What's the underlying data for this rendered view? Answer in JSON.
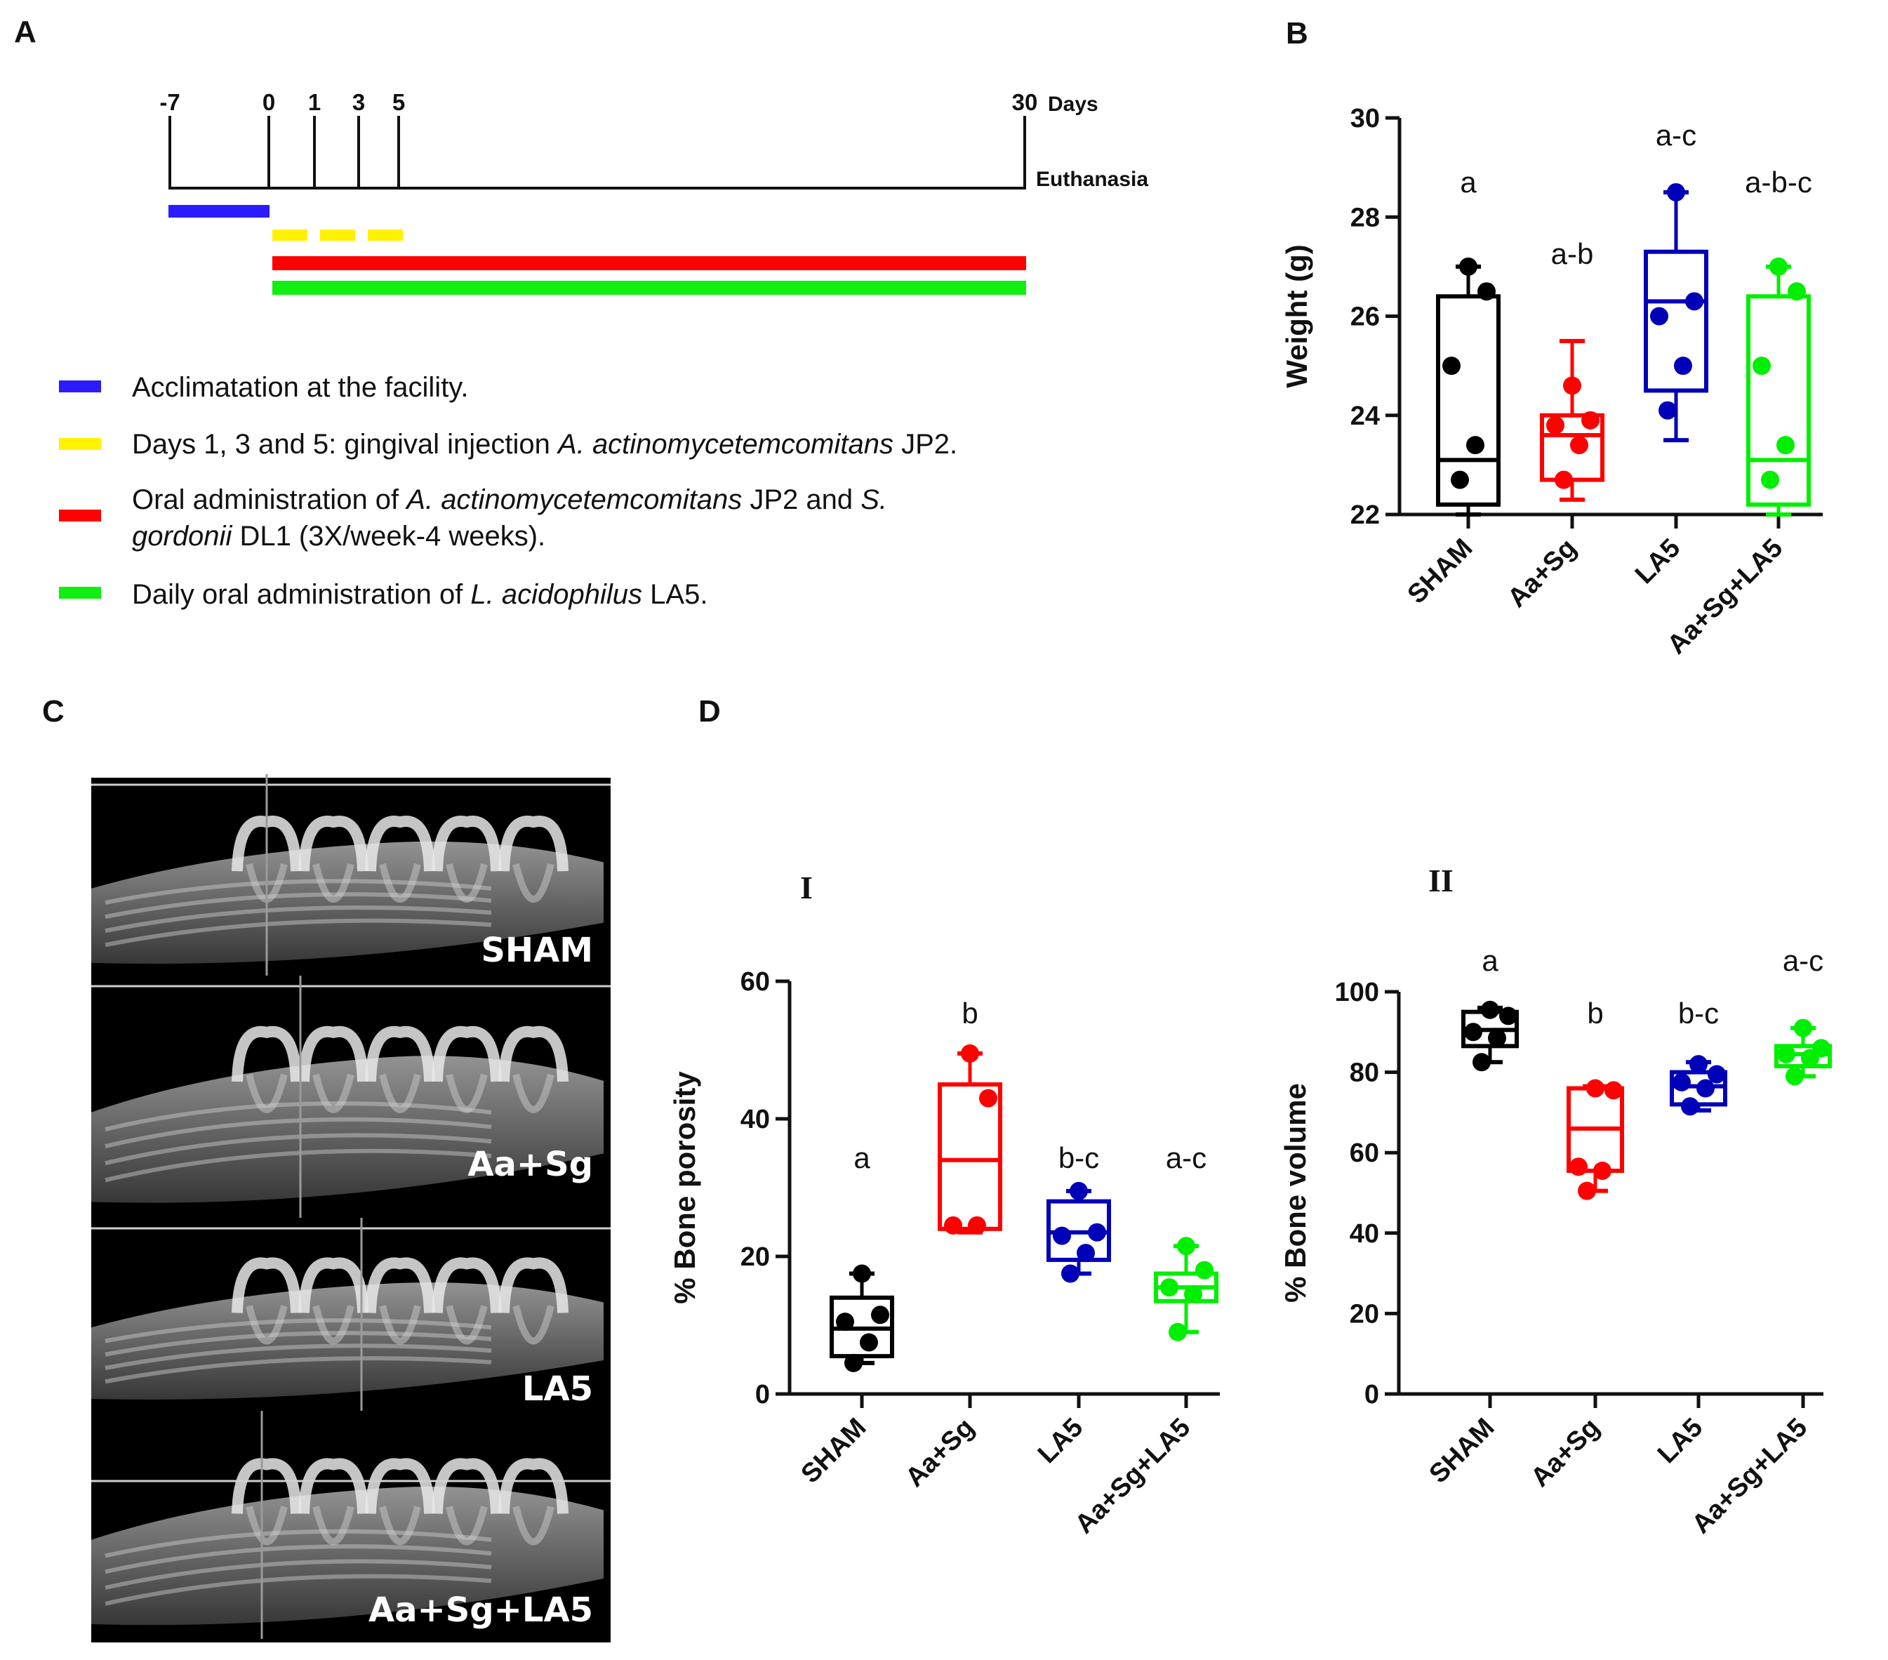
{
  "figure": {
    "panel_a": "A",
    "panel_b": "B",
    "panel_c": "C",
    "panel_d": "D"
  },
  "timeline": {
    "ticks": [
      "-7",
      "0",
      "1",
      "3",
      "5",
      "30"
    ],
    "days_label": "Days",
    "end_label": "Euthanasia",
    "colors": {
      "blue": "#2b1bff",
      "yellow": "#fff200",
      "red": "#ff0000",
      "green": "#11ee11"
    }
  },
  "legend": {
    "blue": "Acclimatation at the facility.",
    "yellow_pre": "Days 1, 3 and 5: gingival injection ",
    "yellow_species": "A. actinomycetemcomitans",
    "yellow_post": " JP2.",
    "red_pre": "Oral administration of ",
    "red_species1": "A. actinomycetemcomitans",
    "red_mid": " JP2 and ",
    "red_species2a": "S.",
    "red_species2b": "gordonii",
    "red_post": " DL1 (3X/week-4 weeks).",
    "green_pre": "Daily oral administration of ",
    "green_species": "L. acidophilus",
    "green_post": " LA5."
  },
  "ct_images": {
    "labels": [
      "SHAM",
      "Aa+Sg",
      "LA5",
      "Aa+Sg+LA5"
    ]
  },
  "subpanels": {
    "d1": "I",
    "d2": "II"
  },
  "chart_data": [
    {
      "id": "B",
      "type": "box",
      "title": "",
      "ylabel": "Weight (g)",
      "ylim": [
        22,
        30
      ],
      "yticks": [
        22,
        24,
        26,
        28,
        30
      ],
      "categories": [
        "SHAM",
        "Aa+Sg",
        "LA5",
        "Aa+Sg+LA5"
      ],
      "colors": [
        "#000000",
        "#ff0000",
        "#0000b8",
        "#00ee00"
      ],
      "significance": [
        "a",
        "a-b",
        "a-c",
        "a-b-c"
      ],
      "boxes": [
        {
          "min": 22.0,
          "q1": 22.2,
          "median": 23.1,
          "q3": 26.4,
          "max": 27.0,
          "points": [
            27.0,
            26.5,
            25.0,
            23.4,
            22.7
          ]
        },
        {
          "min": 22.3,
          "q1": 22.7,
          "median": 23.6,
          "q3": 24.0,
          "max": 25.5,
          "points": [
            24.6,
            23.9,
            23.8,
            23.4,
            22.7
          ]
        },
        {
          "min": 23.5,
          "q1": 24.5,
          "median": 26.3,
          "q3": 27.3,
          "max": 28.5,
          "points": [
            28.5,
            26.3,
            26.0,
            25.0,
            24.1
          ]
        },
        {
          "min": 22.0,
          "q1": 22.2,
          "median": 23.1,
          "q3": 26.4,
          "max": 27.0,
          "points": [
            27.0,
            26.5,
            25.0,
            23.4,
            22.7
          ]
        }
      ]
    },
    {
      "id": "D-I",
      "type": "box",
      "title": "",
      "ylabel": "% Bone porosity",
      "ylim": [
        0,
        60
      ],
      "yticks": [
        0,
        20,
        40,
        60
      ],
      "categories": [
        "SHAM",
        "Aa+Sg",
        "LA5",
        "Aa+Sg+LA5"
      ],
      "colors": [
        "#000000",
        "#ff0000",
        "#0000b8",
        "#00ee00"
      ],
      "significance": [
        "a",
        "b",
        "b-c",
        "a-c"
      ],
      "boxes": [
        {
          "min": 4.5,
          "q1": 5.5,
          "median": 9.5,
          "q3": 14.0,
          "max": 17.5,
          "points": [
            17.5,
            11.5,
            10.5,
            7.5,
            4.5
          ]
        },
        {
          "min": 23.5,
          "q1": 24.0,
          "median": 34.0,
          "q3": 45.0,
          "max": 49.5,
          "points": [
            49.5,
            43.0,
            24.5,
            24.5
          ]
        },
        {
          "min": 17.5,
          "q1": 19.5,
          "median": 23.5,
          "q3": 28.0,
          "max": 29.5,
          "points": [
            29.5,
            23.5,
            23.0,
            20.5,
            17.5
          ]
        },
        {
          "min": 9.0,
          "q1": 13.5,
          "median": 15.5,
          "q3": 17.5,
          "max": 21.5,
          "points": [
            21.5,
            18.0,
            15.5,
            14.5,
            9.0
          ]
        }
      ]
    },
    {
      "id": "D-II",
      "type": "box",
      "title": "",
      "ylabel": "% Bone volume",
      "ylim": [
        0,
        100
      ],
      "yticks": [
        0,
        20,
        40,
        60,
        80,
        100
      ],
      "categories": [
        "SHAM",
        "Aa+Sg",
        "LA5",
        "Aa+Sg+LA5"
      ],
      "colors": [
        "#000000",
        "#ff0000",
        "#0000b8",
        "#00ee00"
      ],
      "significance": [
        "a",
        "b",
        "b-c",
        "a-c"
      ],
      "boxes": [
        {
          "min": 82.5,
          "q1": 86.5,
          "median": 90.5,
          "q3": 95.0,
          "max": 96.0,
          "points": [
            95.5,
            94.0,
            90.0,
            88.5,
            82.5
          ]
        },
        {
          "min": 50.5,
          "q1": 55.5,
          "median": 66.0,
          "q3": 76.0,
          "max": 76.5,
          "points": [
            76.0,
            75.5,
            56.5,
            55.5,
            50.5
          ]
        },
        {
          "min": 70.5,
          "q1": 72.0,
          "median": 76.5,
          "q3": 80.0,
          "max": 82.5,
          "points": [
            82.0,
            79.5,
            77.5,
            76.0,
            71.5
          ]
        },
        {
          "min": 79.0,
          "q1": 81.5,
          "median": 84.5,
          "q3": 86.5,
          "max": 91.0,
          "points": [
            91.0,
            86.0,
            84.5,
            83.5,
            79.0
          ]
        }
      ]
    }
  ]
}
